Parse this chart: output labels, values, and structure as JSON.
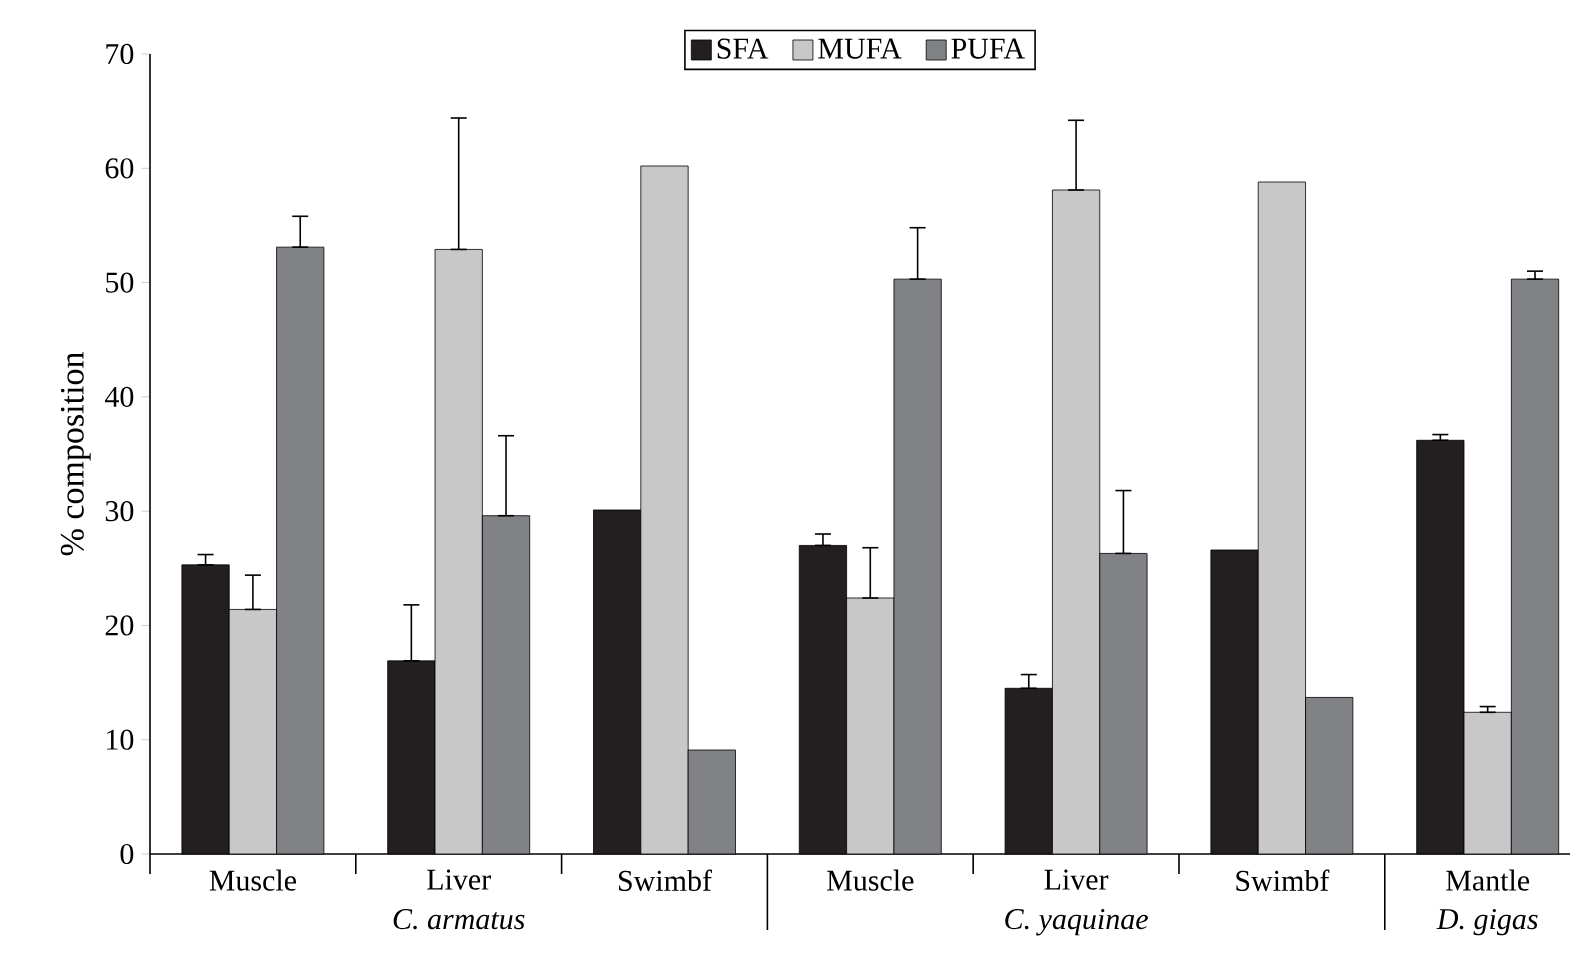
{
  "chart_data": {
    "type": "bar",
    "ylabel": "% composition",
    "categories": [
      "Muscle",
      "Liver",
      "Swimbf",
      "Muscle",
      "Liver",
      "Swimbf",
      "Mantle"
    ],
    "series": [
      {
        "name": "SFA",
        "color": "#231f20",
        "values": [
          25.3,
          16.9,
          30.1,
          27.0,
          14.5,
          26.6,
          36.2
        ],
        "errors": [
          [
            25.3,
            26.2
          ],
          [
            16.9,
            21.8
          ],
          null,
          [
            27.0,
            28.0
          ],
          [
            14.5,
            15.7
          ],
          null,
          [
            36.2,
            36.7
          ]
        ]
      },
      {
        "name": "MUFA",
        "color": "#c8c8c8",
        "values": [
          21.4,
          52.9,
          60.2,
          22.4,
          58.1,
          58.8,
          12.4
        ],
        "errors": [
          [
            21.4,
            24.4
          ],
          [
            52.9,
            64.4
          ],
          null,
          [
            22.4,
            26.8
          ],
          [
            58.1,
            64.2
          ],
          null,
          [
            12.4,
            12.9
          ]
        ]
      },
      {
        "name": "PUFA",
        "color": "#808285",
        "values": [
          53.1,
          29.6,
          9.1,
          50.3,
          26.3,
          13.7,
          50.3
        ],
        "errors": [
          [
            53.1,
            55.8
          ],
          [
            29.6,
            36.6
          ],
          null,
          [
            50.3,
            54.8
          ],
          [
            26.3,
            31.8
          ],
          null,
          [
            50.3,
            51.0
          ]
        ]
      }
    ],
    "annotations": [
      "C. armatus",
      "C. yaquinae",
      "D. gigas"
    ],
    "ylim": [
      0,
      70
    ],
    "yticks": [
      0,
      10,
      20,
      30,
      40,
      50,
      60,
      70
    ],
    "legend": "top",
    "grid": false
  }
}
